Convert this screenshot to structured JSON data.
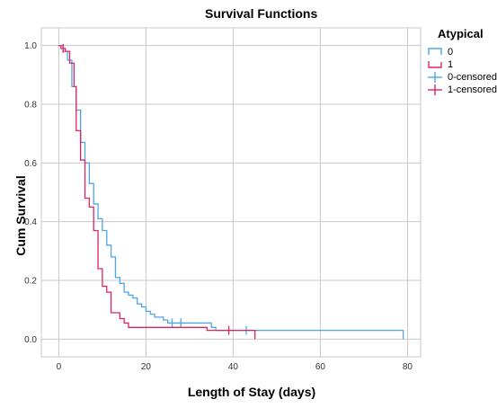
{
  "chart_data": {
    "type": "line",
    "title": "Survival Functions",
    "xlabel": "Length of Stay (days)",
    "ylabel": "Cum Survival",
    "xlim": [
      -4,
      83
    ],
    "ylim": [
      -0.06,
      1.06
    ],
    "xticks": [
      0,
      20,
      40,
      60,
      80
    ],
    "yticks": [
      0.0,
      0.2,
      0.4,
      0.6,
      0.8,
      1.0
    ],
    "ytick_labels": [
      "0.0",
      "0.2",
      "0.4",
      "0.6",
      "0.8",
      "1.0"
    ],
    "grid": true,
    "legend_position": "right",
    "legend_title": "Atypical",
    "series": [
      {
        "name": "0",
        "color": "#4da6e8",
        "censored_label": "0-censored",
        "steps": [
          [
            0,
            1.0
          ],
          [
            1,
            0.98
          ],
          [
            2,
            0.95
          ],
          [
            3,
            0.86
          ],
          [
            4,
            0.78
          ],
          [
            5,
            0.67
          ],
          [
            6,
            0.6
          ],
          [
            7,
            0.53
          ],
          [
            8,
            0.46
          ],
          [
            9,
            0.41
          ],
          [
            10,
            0.37
          ],
          [
            11,
            0.32
          ],
          [
            12,
            0.28
          ],
          [
            13,
            0.21
          ],
          [
            14,
            0.19
          ],
          [
            15,
            0.16
          ],
          [
            16,
            0.15
          ],
          [
            17,
            0.14
          ],
          [
            18,
            0.12
          ],
          [
            19,
            0.11
          ],
          [
            20,
            0.095
          ],
          [
            21,
            0.085
          ],
          [
            22,
            0.075
          ],
          [
            24,
            0.065
          ],
          [
            25,
            0.055
          ],
          [
            35,
            0.04
          ],
          [
            36,
            0.03
          ],
          [
            79,
            0.0
          ]
        ],
        "end_x": 79,
        "censored": [
          [
            26,
            0.055
          ],
          [
            28,
            0.055
          ],
          [
            43,
            0.03
          ]
        ]
      },
      {
        "name": "1",
        "color": "#e0245e",
        "censored_label": "1-censored",
        "steps": [
          [
            0,
            1.0
          ],
          [
            0.5,
            0.99
          ],
          [
            1.5,
            0.98
          ],
          [
            2.5,
            0.94
          ],
          [
            3.5,
            0.86
          ],
          [
            4,
            0.71
          ],
          [
            5,
            0.61
          ],
          [
            6,
            0.48
          ],
          [
            7,
            0.45
          ],
          [
            8,
            0.37
          ],
          [
            9,
            0.24
          ],
          [
            10,
            0.18
          ],
          [
            11,
            0.16
          ],
          [
            12,
            0.09
          ],
          [
            14,
            0.07
          ],
          [
            15,
            0.055
          ],
          [
            16,
            0.04
          ],
          [
            34,
            0.03
          ],
          [
            45,
            0.0
          ]
        ],
        "end_x": 45,
        "censored": [
          [
            1,
            0.99
          ],
          [
            39,
            0.03
          ]
        ]
      }
    ]
  }
}
